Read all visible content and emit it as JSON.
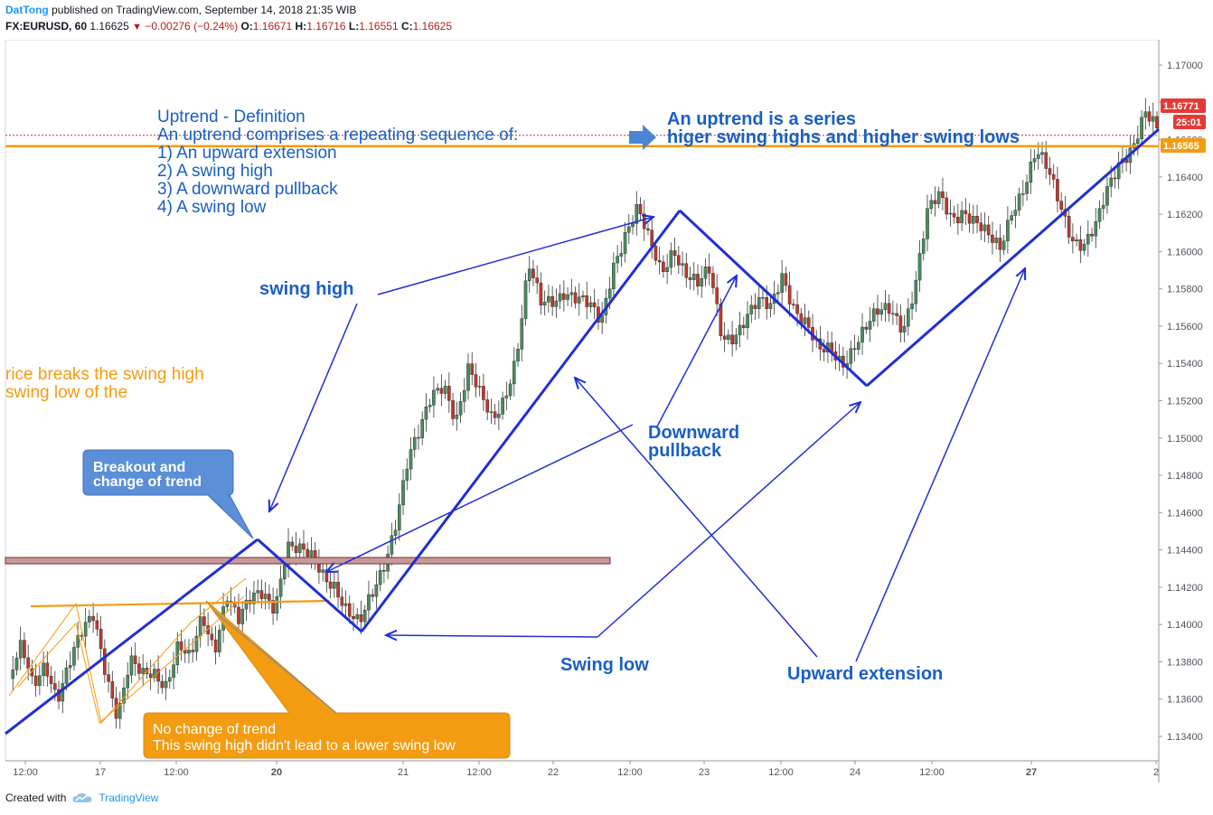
{
  "header": {
    "author": "DatTong",
    "published_text": "published on TradingView.com, September 14, 2018 21:35 WIB",
    "symbol": "FX:EURUSD, 60",
    "last": "1.16625",
    "change": "−0.00276 (−0.24%)",
    "open_label": "O:",
    "open": "1.16671",
    "high_label": "H:",
    "high": "1.16716",
    "low_label": "L:",
    "low": "1.16551",
    "close_label": "C:",
    "close": "1.16625"
  },
  "footer": {
    "created_with": "Created with",
    "brand": "TradingView",
    "icon": "tradingview-cloud-icon"
  },
  "colors": {
    "up": "#4a8c5e",
    "down": "#c0392b",
    "trend_line": "#1f2fd6",
    "annotation_orange": "#f39c12",
    "callout_blue": "#5b8fd8",
    "text_blue": "#1a5fc4"
  },
  "chart_data": {
    "type": "candlestick",
    "symbol": "EURUSD",
    "interval": "60",
    "ylim": [
      1.1328,
      1.1715
    ],
    "y_ticks": [
      "1.17000",
      "1.16800",
      "1.16600",
      "1.16400",
      "1.16200",
      "1.16000",
      "1.15800",
      "1.15600",
      "1.15400",
      "1.15200",
      "1.15000",
      "1.14800",
      "1.14600",
      "1.14400",
      "1.14200",
      "1.14000",
      "1.13800",
      "1.13600",
      "1.13400"
    ],
    "x_ticks": [
      "12:00",
      "17",
      "12:00",
      "20",
      "21",
      "12:00",
      "22",
      "12:00",
      "23",
      "12:00",
      "24",
      "12:00",
      "27",
      "2"
    ],
    "price_tags": [
      {
        "value": "1.16771",
        "color": "#e53935"
      },
      {
        "value": "25:01",
        "color": "#e53935"
      },
      {
        "value": "1.16565",
        "color": "#f39c12"
      }
    ],
    "ohlc_path": [
      1.1371,
      1.1385,
      1.1365,
      1.1382,
      1.1363,
      1.1378,
      1.1392,
      1.1405,
      1.1378,
      1.1352,
      1.1378,
      1.137,
      1.1375,
      1.1371,
      1.139,
      1.1378,
      1.1402,
      1.1388,
      1.142,
      1.1402,
      1.141,
      1.1416,
      1.1412,
      1.1445,
      1.1438,
      1.1433,
      1.1427,
      1.1424,
      1.1408,
      1.1397,
      1.1413,
      1.1433,
      1.1458,
      1.1488,
      1.15,
      1.1522,
      1.1532,
      1.1512,
      1.1535,
      1.152,
      1.151,
      1.1525,
      1.1545,
      1.159,
      1.157,
      1.1575,
      1.1582,
      1.1575,
      1.1568,
      1.156,
      1.1595,
      1.1612,
      1.1622,
      1.1602,
      1.1588,
      1.1605,
      1.159,
      1.158,
      1.1587,
      1.1555,
      1.1558,
      1.1565,
      1.157,
      1.1568,
      1.159,
      1.1572,
      1.156,
      1.1543,
      1.1547,
      1.1543,
      1.1552,
      1.1558,
      1.1565,
      1.157,
      1.1562,
      1.1583,
      1.1618,
      1.1628,
      1.162,
      1.1625,
      1.1615,
      1.1605,
      1.16,
      1.1625,
      1.1637,
      1.1652,
      1.164,
      1.1625,
      1.161,
      1.1605,
      1.1612,
      1.1632,
      1.165,
      1.166,
      1.1675,
      1.1662
    ],
    "trend_lines": [
      [
        [
          "12:00",
          1.134
        ],
        [
          "20 (peak)",
          1.1445
        ]
      ],
      [
        [
          "20 (peak)",
          1.1445
        ],
        [
          "20 (swing low)",
          1.1396
        ]
      ],
      [
        [
          "20 (swing low)",
          1.1396
        ],
        [
          "22/23 swing high",
          1.1622
        ]
      ],
      [
        [
          "22/23 swing high",
          1.1622
        ],
        [
          "24 swing low",
          1.1528
        ]
      ],
      [
        [
          "24 swing low",
          1.1528
        ],
        [
          "28",
          1.1647
        ]
      ]
    ],
    "horizontal_levels": [
      {
        "value": 1.16565,
        "color": "#f39c12"
      },
      {
        "value": 1.1434,
        "color": "#c69a9a",
        "label": ""
      }
    ],
    "annotations": {
      "definition": [
        "Uptrend - Definition",
        "An uptrend comprises a repeating sequence of:",
        "1) An upward extension",
        "2) A swing high",
        "3) A downward pullback",
        "4) A swing low"
      ],
      "series_note": [
        "An uptrend is a series",
        "higer swing highs and higher swing lows"
      ],
      "orange_note": [
        "rice breaks the swing high",
        "swing low of the"
      ],
      "swing_high": "swing high",
      "downward_pullback": [
        "Downward",
        "pullback"
      ],
      "swing_low": "Swing low",
      "upward_extension": "Upward extension",
      "breakout_callout": [
        "Breakout and",
        "change of trend"
      ],
      "no_change_callout": [
        "No change of trend",
        "This swing high didn't lead to a lower swing low"
      ]
    }
  }
}
